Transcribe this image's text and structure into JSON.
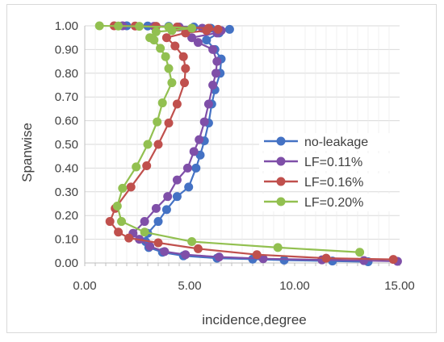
{
  "chart_data": {
    "type": "scatter",
    "title": "",
    "xlabel": "incidence,degree",
    "ylabel": "Spanwise",
    "xlim": [
      0,
      15
    ],
    "ylim": [
      0,
      1
    ],
    "xticks": [
      "0.00",
      "5.00",
      "10.00",
      "15.00"
    ],
    "yticks": [
      "0.00",
      "0.10",
      "0.20",
      "0.30",
      "0.40",
      "0.50",
      "0.60",
      "0.70",
      "0.80",
      "0.90",
      "1.00"
    ],
    "grid": "horizontal",
    "legend_position": "right",
    "series": [
      {
        "name": "no-leakage",
        "color": "#4472c4",
        "points": [
          [
            13.5,
            0.005
          ],
          [
            11.8,
            0.008
          ],
          [
            9.5,
            0.012
          ],
          [
            8.0,
            0.016
          ],
          [
            6.3,
            0.02
          ],
          [
            4.7,
            0.03
          ],
          [
            3.7,
            0.045
          ],
          [
            3.05,
            0.065
          ],
          [
            2.9,
            0.09
          ],
          [
            3.0,
            0.125
          ],
          [
            3.5,
            0.175
          ],
          [
            3.9,
            0.225
          ],
          [
            4.4,
            0.28
          ],
          [
            4.95,
            0.32
          ],
          [
            5.3,
            0.4
          ],
          [
            5.5,
            0.455
          ],
          [
            5.7,
            0.515
          ],
          [
            5.9,
            0.59
          ],
          [
            6.05,
            0.67
          ],
          [
            6.2,
            0.73
          ],
          [
            6.45,
            0.8
          ],
          [
            6.5,
            0.86
          ],
          [
            6.2,
            0.9
          ],
          [
            5.8,
            0.94
          ],
          [
            6.4,
            0.97
          ],
          [
            6.9,
            0.985
          ],
          [
            6.0,
            0.99
          ],
          [
            5.2,
            0.995
          ],
          [
            4.0,
            0.998
          ],
          [
            3.0,
            0.999
          ],
          [
            2.0,
            1.0
          ]
        ]
      },
      {
        "name": "LF=0.11%",
        "color": "#7f4fa8",
        "points": [
          [
            14.9,
            0.007
          ],
          [
            13.3,
            0.01
          ],
          [
            11.3,
            0.013
          ],
          [
            8.5,
            0.018
          ],
          [
            6.4,
            0.025
          ],
          [
            4.8,
            0.035
          ],
          [
            3.8,
            0.048
          ],
          [
            3.1,
            0.07
          ],
          [
            2.6,
            0.1
          ],
          [
            2.3,
            0.125
          ],
          [
            2.85,
            0.175
          ],
          [
            3.4,
            0.23
          ],
          [
            3.95,
            0.28
          ],
          [
            4.4,
            0.35
          ],
          [
            4.9,
            0.4
          ],
          [
            5.2,
            0.47
          ],
          [
            5.45,
            0.52
          ],
          [
            5.7,
            0.595
          ],
          [
            5.9,
            0.67
          ],
          [
            6.1,
            0.75
          ],
          [
            6.25,
            0.8
          ],
          [
            6.3,
            0.85
          ],
          [
            6.1,
            0.9
          ],
          [
            5.4,
            0.93
          ],
          [
            5.1,
            0.95
          ],
          [
            6.3,
            0.97
          ],
          [
            6.5,
            0.98
          ],
          [
            5.6,
            0.99
          ],
          [
            4.5,
            0.995
          ],
          [
            3.3,
            0.998
          ],
          [
            1.8,
            1.0
          ]
        ]
      },
      {
        "name": "LF=0.16%",
        "color": "#c0504d",
        "points": [
          [
            14.7,
            0.015
          ],
          [
            11.5,
            0.02
          ],
          [
            8.2,
            0.035
          ],
          [
            5.4,
            0.06
          ],
          [
            3.5,
            0.085
          ],
          [
            2.1,
            0.105
          ],
          [
            1.6,
            0.13
          ],
          [
            1.2,
            0.175
          ],
          [
            1.45,
            0.23
          ],
          [
            2.2,
            0.32
          ],
          [
            2.95,
            0.41
          ],
          [
            3.5,
            0.5
          ],
          [
            4.0,
            0.59
          ],
          [
            4.4,
            0.67
          ],
          [
            4.75,
            0.76
          ],
          [
            4.8,
            0.82
          ],
          [
            4.7,
            0.87
          ],
          [
            4.3,
            0.915
          ],
          [
            3.9,
            0.95
          ],
          [
            4.8,
            0.97
          ],
          [
            5.8,
            0.98
          ],
          [
            6.35,
            0.985
          ],
          [
            5.9,
            0.99
          ],
          [
            4.4,
            0.995
          ],
          [
            3.4,
            0.998
          ],
          [
            2.4,
            0.999
          ],
          [
            1.4,
            1.0
          ]
        ]
      },
      {
        "name": "LF=0.20%",
        "color": "#92c050",
        "points": [
          [
            13.1,
            0.045
          ],
          [
            9.2,
            0.065
          ],
          [
            5.1,
            0.09
          ],
          [
            2.85,
            0.13
          ],
          [
            1.75,
            0.175
          ],
          [
            1.55,
            0.24
          ],
          [
            1.8,
            0.315
          ],
          [
            2.45,
            0.405
          ],
          [
            3.0,
            0.5
          ],
          [
            3.45,
            0.595
          ],
          [
            3.7,
            0.675
          ],
          [
            4.15,
            0.76
          ],
          [
            4.0,
            0.82
          ],
          [
            3.85,
            0.87
          ],
          [
            3.6,
            0.905
          ],
          [
            3.3,
            0.94
          ],
          [
            3.1,
            0.95
          ],
          [
            3.4,
            0.975
          ],
          [
            4.15,
            0.98
          ],
          [
            5.1,
            0.99
          ],
          [
            4.0,
            0.995
          ],
          [
            2.6,
            0.998
          ],
          [
            1.6,
            0.999
          ],
          [
            0.7,
            1.0
          ]
        ]
      }
    ]
  }
}
